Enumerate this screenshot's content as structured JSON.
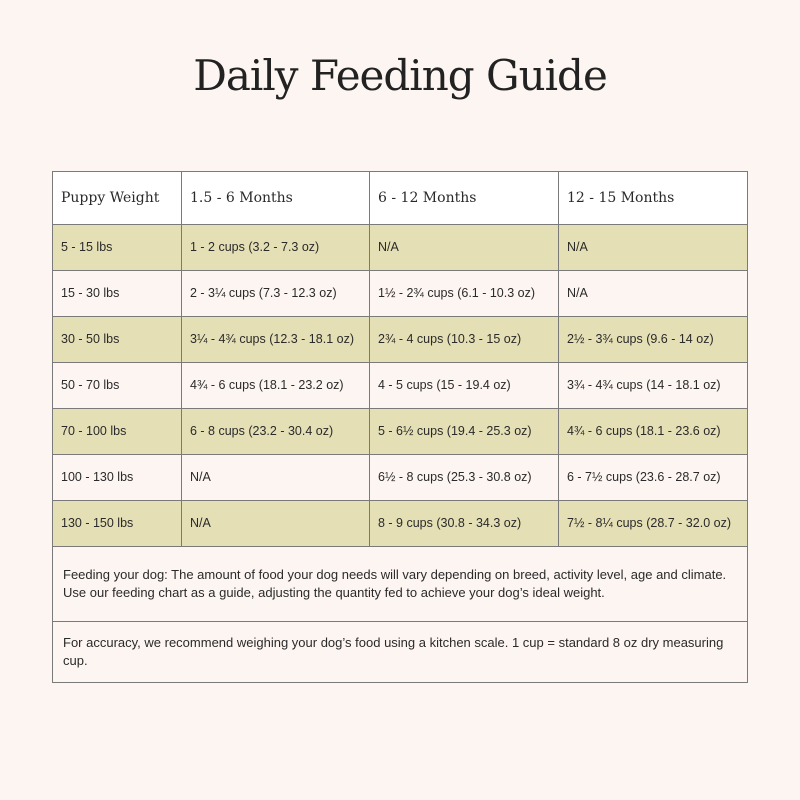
{
  "title": "Daily Feeding Guide",
  "table": {
    "headers": [
      "Puppy Weight",
      "1.5 - 6 Months",
      "6 - 12 Months",
      "12 - 15 Months"
    ],
    "rows": [
      [
        "5 - 15 lbs",
        "1 - 2 cups (3.2 - 7.3 oz)",
        "N/A",
        "N/A"
      ],
      [
        "15 - 30 lbs",
        "2 - 3¼ cups (7.3 - 12.3 oz)",
        "1½ - 2¾ cups (6.1 - 10.3 oz)",
        "N/A"
      ],
      [
        "30 - 50 lbs",
        "3¼ - 4¾ cups (12.3 - 18.1 oz)",
        "2¾ - 4 cups (10.3 - 15 oz)",
        "2½ - 3¾ cups (9.6 - 14 oz)"
      ],
      [
        "50 - 70 lbs",
        "4¾ - 6 cups (18.1 - 23.2 oz)",
        "4 - 5 cups (15 - 19.4 oz)",
        "3¾ - 4¾ cups (14 - 18.1 oz)"
      ],
      [
        "70 - 100 lbs",
        "6 - 8 cups (23.2 - 30.4 oz)",
        "5 - 6½ cups (19.4 - 25.3 oz)",
        "4¾ - 6 cups (18.1 - 23.6 oz)"
      ],
      [
        "100 - 130 lbs",
        "N/A",
        "6½ - 8 cups (25.3 - 30.8 oz)",
        "6 - 7½ cups (23.6 - 28.7 oz)"
      ],
      [
        "130 - 150 lbs",
        "N/A",
        "8 - 9 cups (30.8 - 34.3 oz)",
        "7½ - 8¼ cups (28.7 - 32.0 oz)"
      ]
    ]
  },
  "notes": {
    "feeding": "Feeding your dog: The amount of food your dog needs will vary depending on breed, activity level, age and climate. Use our feeding chart as a guide, adjusting the quantity fed to achieve your dog’s ideal weight.",
    "accuracy": "For accuracy, we recommend weighing your dog’s food using a kitchen scale. 1 cup = standard 8 oz dry measuring cup."
  },
  "colors": {
    "background": "#fdf5f1",
    "shaded_row": "#e5dfb5",
    "header": "#ffffff",
    "border": "#7a7a7a"
  }
}
